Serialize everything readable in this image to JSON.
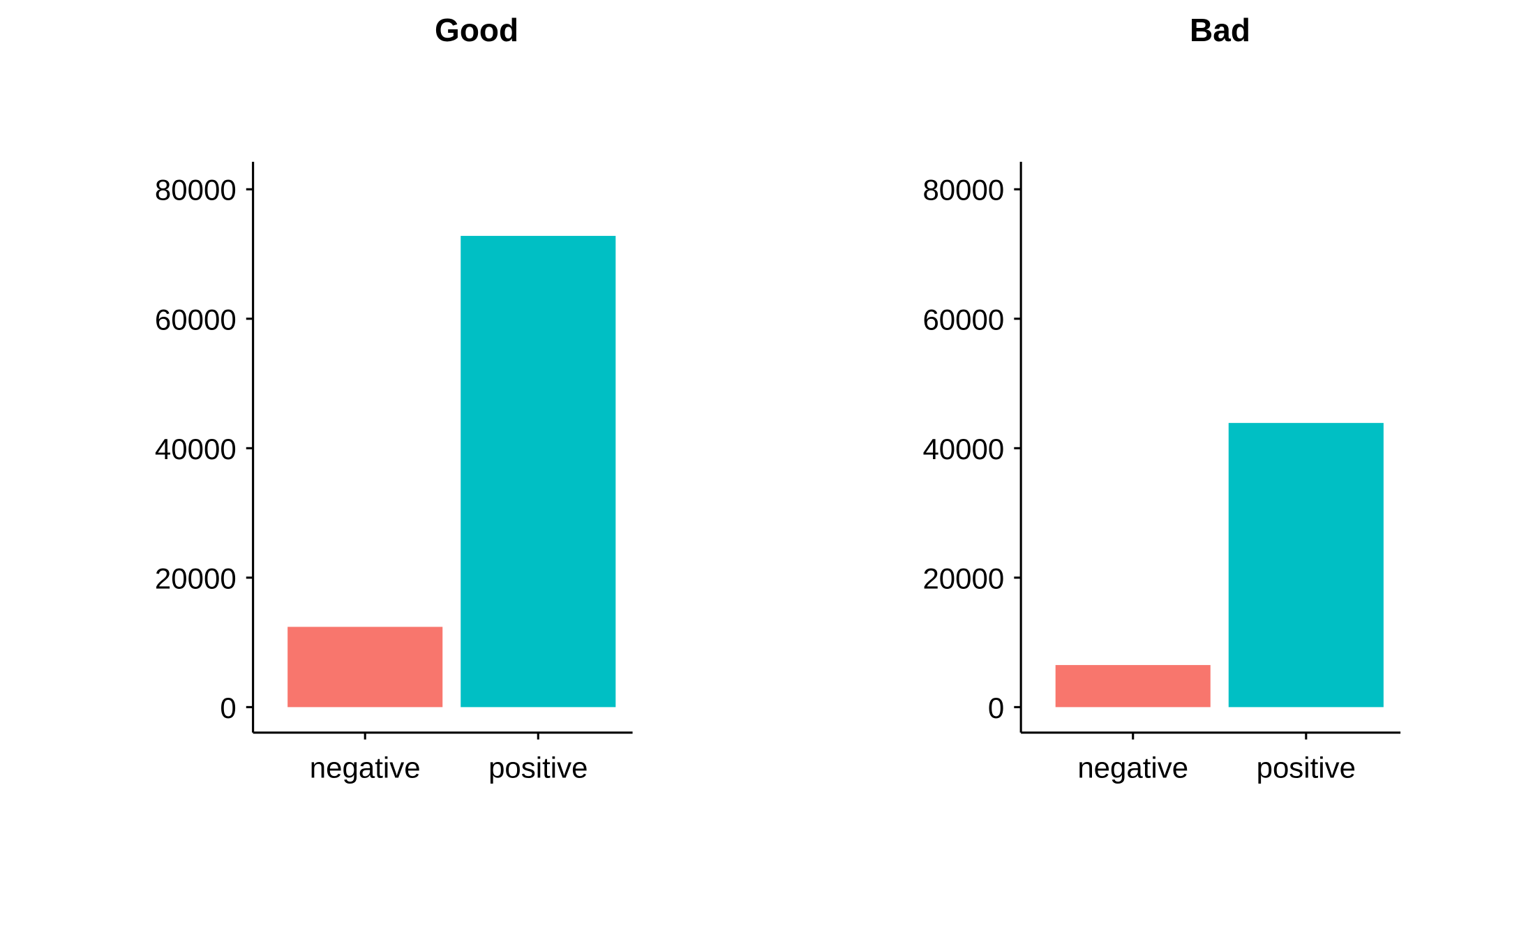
{
  "chart_data": [
    {
      "type": "bar",
      "title": "Good",
      "xlabel": "",
      "ylabel": "",
      "categories": [
        "negative",
        "positive"
      ],
      "values": [
        12400,
        72800
      ],
      "colors": [
        "#F8766D",
        "#00BFC4"
      ],
      "ylim": [
        0,
        80000
      ],
      "yticks": [
        0,
        20000,
        40000,
        60000,
        80000
      ],
      "ytick_labels": [
        "0",
        "20000",
        "40000",
        "60000",
        "80000"
      ],
      "grid": false,
      "legend": "none"
    },
    {
      "type": "bar",
      "title": "Bad",
      "xlabel": "",
      "ylabel": "",
      "categories": [
        "negative",
        "positive"
      ],
      "values": [
        6500,
        43900
      ],
      "colors": [
        "#F8766D",
        "#00BFC4"
      ],
      "ylim": [
        0,
        80000
      ],
      "yticks": [
        0,
        20000,
        40000,
        60000,
        80000
      ],
      "ytick_labels": [
        "0",
        "20000",
        "40000",
        "60000",
        "80000"
      ],
      "grid": false,
      "legend": "none"
    }
  ]
}
